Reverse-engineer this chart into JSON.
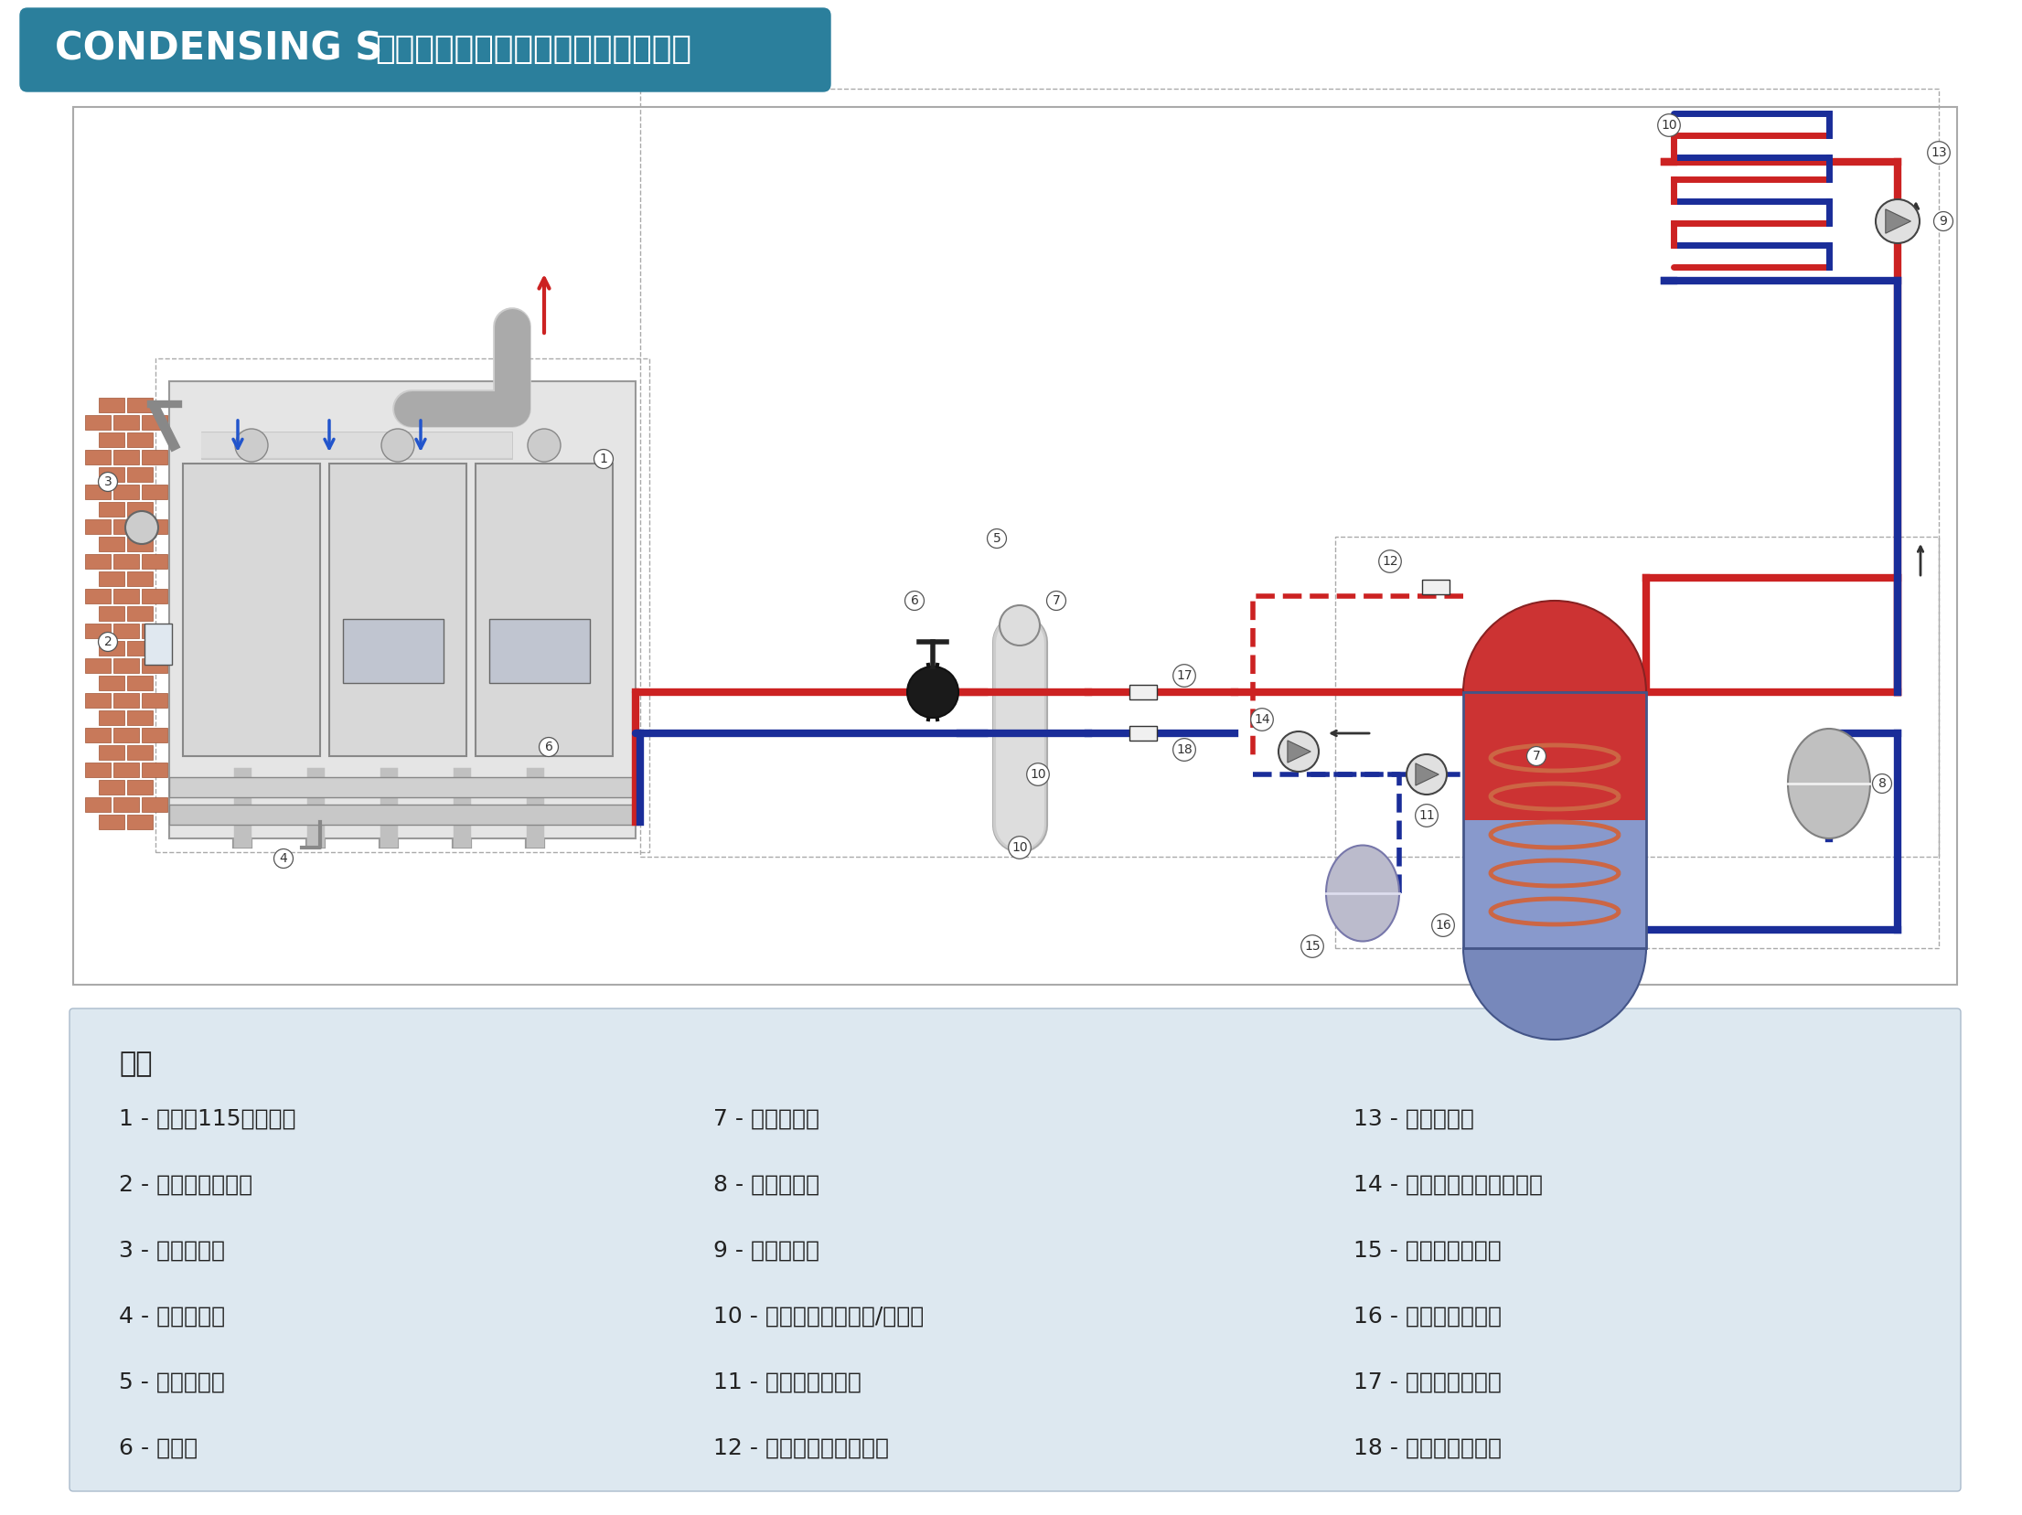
{
  "title_bg_color": "#2b7f9c",
  "title_text_condensing": "CONDENSING S",
  "title_text_chinese": "供暖及生活热水储罐并联安装示例图",
  "main_bg": "#ffffff",
  "legend_bg": "#dde8f0",
  "legend_title": "图例",
  "legend_items_col1": [
    "1 - 康丹森115冷凝锅炉",
    "2 - 室内自动调温器",
    "3 - 室外探测器",
    "4 - 冷凝排放口",
    "5 - 空气分离器",
    "6 - 换热器"
  ],
  "legend_items_col2": [
    "7 - 污垢分离器",
    "8 - 系统膨胀罐",
    "9 - 采暖循环泵",
    "10 - 用户末端（散热器/地热）",
    "11 - 生活热水循环泵",
    "12 - 生活热水温度传感器"
  ],
  "legend_items_col3": [
    "13 - 热水用户端",
    "14 - 生活热水用户端循环泵",
    "15 - 生活热水膨胀罐",
    "16 - 生活热水储存罐",
    "17 - 供水温度传感器",
    "18 - 回水温度传感器"
  ],
  "pipe_red": "#cc2222",
  "pipe_blue": "#1a2d99",
  "pipe_lw": 6,
  "gray_dark": "#999999",
  "gray_mid": "#bbbbbb",
  "gray_light": "#dddddd",
  "gray_bg": "#e8e8e8",
  "brick_face": "#c8795a",
  "brick_edge": "#a05535"
}
